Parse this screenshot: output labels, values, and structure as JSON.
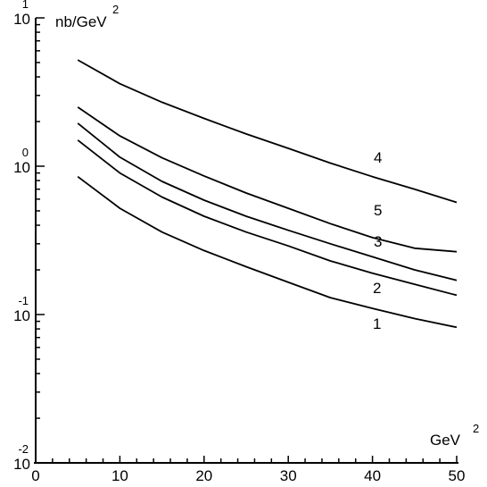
{
  "chart_data": {
    "type": "line",
    "title": "",
    "xlabel": "GeV",
    "xlabel_sup": "2",
    "ylabel": "nb/GeV",
    "ylabel_sup": "2",
    "xlim": [
      0,
      50
    ],
    "ylim": [
      0.01,
      10
    ],
    "yscale": "log",
    "grid": false,
    "x_ticks": [
      {
        "value": 0,
        "label": "0"
      },
      {
        "value": 10,
        "label": "10"
      },
      {
        "value": 20,
        "label": "20"
      },
      {
        "value": 30,
        "label": "30"
      },
      {
        "value": 40,
        "label": "40"
      },
      {
        "value": 50,
        "label": "50"
      }
    ],
    "y_ticks": [
      {
        "value": 10,
        "base": "10",
        "exp": "1"
      },
      {
        "value": 1,
        "base": "10",
        "exp": "0"
      },
      {
        "value": 0.1,
        "base": "10",
        "exp": "-1"
      },
      {
        "value": 0.01,
        "base": "10",
        "exp": "-2"
      }
    ],
    "series": [
      {
        "label": "1",
        "x": [
          5,
          10,
          15,
          20,
          25,
          30,
          35,
          40,
          45,
          50
        ],
        "y": [
          0.85,
          0.52,
          0.36,
          0.27,
          0.21,
          0.165,
          0.13,
          0.11,
          0.094,
          0.082
        ]
      },
      {
        "label": "2",
        "x": [
          5,
          10,
          15,
          20,
          25,
          30,
          35,
          40,
          45,
          50
        ],
        "y": [
          1.5,
          0.9,
          0.62,
          0.46,
          0.36,
          0.29,
          0.23,
          0.19,
          0.16,
          0.135
        ]
      },
      {
        "label": "3",
        "x": [
          5,
          10,
          15,
          20,
          25,
          30,
          35,
          40,
          45,
          50
        ],
        "y": [
          1.95,
          1.15,
          0.79,
          0.59,
          0.46,
          0.37,
          0.3,
          0.245,
          0.2,
          0.17
        ]
      },
      {
        "label": "5",
        "x": [
          5,
          10,
          15,
          20,
          25,
          30,
          35,
          40,
          45,
          50
        ],
        "y": [
          2.5,
          1.6,
          1.14,
          0.86,
          0.66,
          0.52,
          0.41,
          0.33,
          0.28,
          0.265
        ]
      },
      {
        "label": "4",
        "x": [
          5,
          10,
          15,
          20,
          25,
          30,
          35,
          40,
          45,
          50
        ],
        "y": [
          5.2,
          3.6,
          2.7,
          2.1,
          1.65,
          1.32,
          1.05,
          0.85,
          0.7,
          0.57
        ]
      }
    ]
  }
}
